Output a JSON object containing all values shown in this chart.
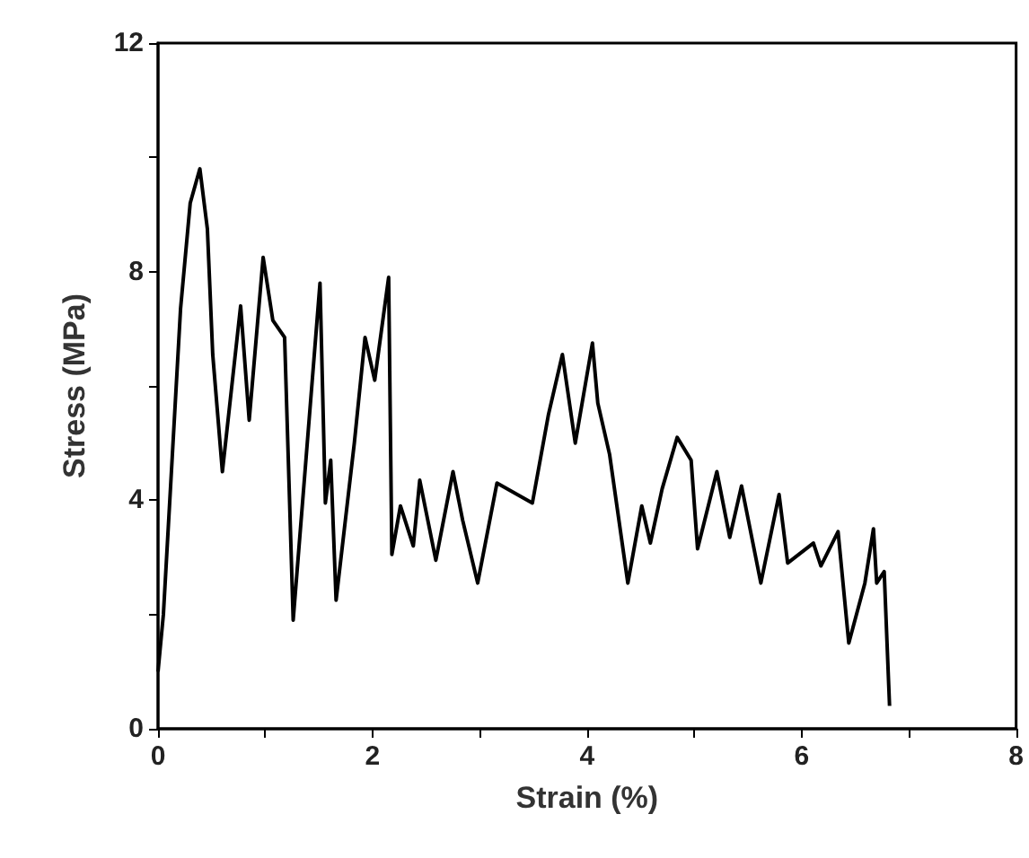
{
  "chart_data": {
    "type": "line",
    "xlabel": "Strain (%)",
    "ylabel": "Stress (MPa)",
    "xlim": [
      0,
      8
    ],
    "ylim": [
      0,
      12
    ],
    "xticks": [
      0,
      {
        "value": 1,
        "label": null
      },
      2,
      {
        "value": 3,
        "label": null
      },
      4,
      {
        "value": 5,
        "label": null
      },
      6,
      {
        "value": 7,
        "label": null
      },
      8
    ],
    "yticks": [
      0,
      {
        "value": 2,
        "label": null
      },
      4,
      {
        "value": 6,
        "label": null
      },
      8,
      {
        "value": 10,
        "label": null
      },
      12
    ],
    "grid": false,
    "marker": "none",
    "line_style": "solid",
    "series": [
      {
        "color": "#000000",
        "x": [
          0,
          0.05,
          0.21,
          0.3,
          0.39,
          0.46,
          0.51,
          0.6,
          0.77,
          0.85,
          0.98,
          1.07,
          1.18,
          1.26,
          1.51,
          1.56,
          1.61,
          1.66,
          1.83,
          1.93,
          2.02,
          2.15,
          2.18,
          2.26,
          2.38,
          2.44,
          2.59,
          2.75,
          2.84,
          2.98,
          3.16,
          3.49,
          3.64,
          3.77,
          3.89,
          4.05,
          4.1,
          4.21,
          4.38,
          4.51,
          4.59,
          4.7,
          4.84,
          4.97,
          5.03,
          5.21,
          5.33,
          5.44,
          5.62,
          5.79,
          5.87,
          6.11,
          6.18,
          6.34,
          6.44,
          6.59,
          6.67,
          6.7,
          6.77,
          6.82
        ],
        "values": [
          1.0,
          2.0,
          7.35,
          9.2,
          9.8,
          8.75,
          6.55,
          4.5,
          7.4,
          5.4,
          8.25,
          7.15,
          6.85,
          1.9,
          7.8,
          3.95,
          4.7,
          2.25,
          5.0,
          6.85,
          6.1,
          7.9,
          3.05,
          3.9,
          3.2,
          4.35,
          2.95,
          4.5,
          3.65,
          2.55,
          4.3,
          3.95,
          5.5,
          6.55,
          5.0,
          6.75,
          5.7,
          4.8,
          2.55,
          3.9,
          3.25,
          4.2,
          5.1,
          4.7,
          3.15,
          4.5,
          3.35,
          4.25,
          2.55,
          4.1,
          2.9,
          3.25,
          2.85,
          3.45,
          1.5,
          2.55,
          3.5,
          2.55,
          2.75,
          0.4
        ]
      }
    ]
  }
}
